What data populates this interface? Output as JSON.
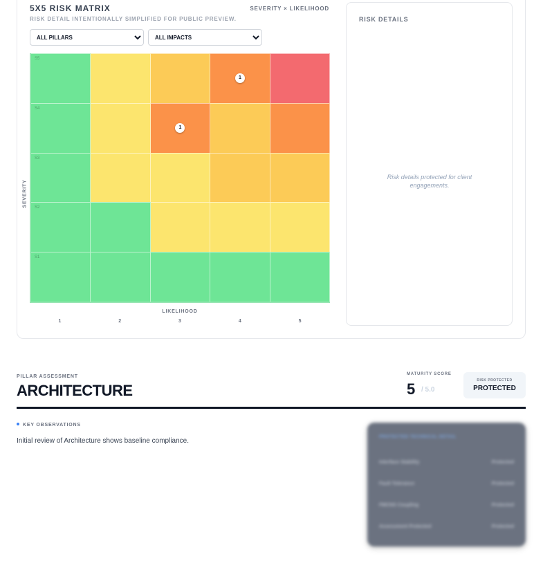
{
  "matrix": {
    "title": "5X5 RISK MATRIX",
    "subtitle": "RISK DETAIL INTENTIONALLY SIMPLIFIED FOR PUBLIC PREVIEW.",
    "axis_legend": "SEVERITY × LIKELIHOOD",
    "filters": {
      "pillar": {
        "selected": "ALL PILLARS"
      },
      "impact": {
        "selected": "ALL IMPACTS"
      }
    },
    "y_axis_label": "SEVERITY",
    "x_axis_label": "LIKELIHOOD",
    "x_ticks": [
      "1",
      "2",
      "3",
      "4",
      "5"
    ],
    "rows": [
      {
        "label": "S5",
        "cells": [
          {
            "level": "green"
          },
          {
            "level": "yellow"
          },
          {
            "level": "amber"
          },
          {
            "level": "orange",
            "count": "1"
          },
          {
            "level": "red"
          }
        ]
      },
      {
        "label": "S4",
        "cells": [
          {
            "level": "green"
          },
          {
            "level": "yellow"
          },
          {
            "level": "orange",
            "count": "1"
          },
          {
            "level": "amber"
          },
          {
            "level": "orange"
          }
        ]
      },
      {
        "label": "S3",
        "cells": [
          {
            "level": "green"
          },
          {
            "level": "yellow"
          },
          {
            "level": "yellow"
          },
          {
            "level": "amber"
          },
          {
            "level": "amber"
          }
        ]
      },
      {
        "label": "S2",
        "cells": [
          {
            "level": "green"
          },
          {
            "level": "green"
          },
          {
            "level": "yellow"
          },
          {
            "level": "yellow"
          },
          {
            "level": "yellow"
          }
        ]
      },
      {
        "label": "S1",
        "cells": [
          {
            "level": "green"
          },
          {
            "level": "green"
          },
          {
            "level": "green"
          },
          {
            "level": "green"
          },
          {
            "level": "green"
          }
        ]
      }
    ]
  },
  "details": {
    "title": "RISK DETAILS",
    "message": "Risk details protected for client engagements."
  },
  "pillar": {
    "eyebrow": "PILLAR ASSESSMENT",
    "title": "ARCHITECTURE",
    "maturity_label": "MATURITY SCORE",
    "score": "5",
    "score_max": "/ 5.0",
    "status_caption": "RISK PROTECTED",
    "status_value": "PROTECTED"
  },
  "observations": {
    "label": "KEY OBSERVATIONS",
    "text": "Initial review of Architecture shows baseline compliance."
  },
  "protected_card": {
    "header": "PROTECTED TECHNICAL DETAIL",
    "rows": [
      {
        "label": "Interface Stability",
        "value": "Protected"
      },
      {
        "label": "Fault Tolerance",
        "value": "Protected"
      },
      {
        "label": "FMCNS Coupling",
        "value": "Protected"
      },
      {
        "label": "Assessment Protected",
        "value": "Protected"
      }
    ]
  }
}
